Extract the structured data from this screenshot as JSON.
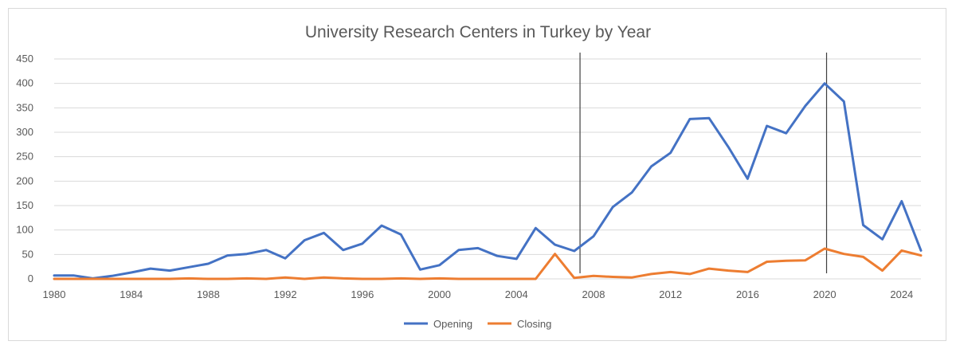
{
  "chart_data": {
    "type": "line",
    "title": "University Research Centers in Turkey by Year",
    "xlabel": "",
    "ylabel": "",
    "x": [
      1980,
      1981,
      1982,
      1983,
      1984,
      1985,
      1986,
      1987,
      1988,
      1989,
      1990,
      1991,
      1992,
      1993,
      1994,
      1995,
      1996,
      1997,
      1998,
      1999,
      2000,
      2001,
      2002,
      2003,
      2004,
      2005,
      2006,
      2007,
      2008,
      2009,
      2010,
      2011,
      2012,
      2013,
      2014,
      2015,
      2016,
      2017,
      2018,
      2019,
      2020,
      2021,
      2022,
      2023,
      2024,
      2025
    ],
    "x_tick_labels": [
      "1980",
      "1984",
      "1988",
      "1992",
      "1996",
      "2000",
      "2004",
      "2008",
      "2012",
      "2016",
      "2020",
      "2024"
    ],
    "y_tick_labels": [
      "0",
      "50",
      "100",
      "150",
      "200",
      "250",
      "300",
      "350",
      "400",
      "450"
    ],
    "xlim": [
      1980,
      2025
    ],
    "ylim": [
      0,
      450
    ],
    "grid": true,
    "legend_position": "bottom",
    "vertical_markers": [
      2007.3,
      2020.1
    ],
    "series": [
      {
        "name": "Opening",
        "color": "#4472c4",
        "values": [
          7,
          7,
          1,
          6,
          13,
          21,
          17,
          24,
          31,
          48,
          51,
          59,
          42,
          79,
          94,
          59,
          72,
          109,
          91,
          19,
          28,
          59,
          63,
          47,
          41,
          104,
          70,
          57,
          87,
          147,
          177,
          230,
          258,
          327,
          329,
          270,
          205,
          313,
          298,
          354,
          400,
          363,
          110,
          81,
          159,
          58
        ]
      },
      {
        "name": "Closing",
        "color": "#ed7d31",
        "values": [
          0,
          0,
          0,
          0,
          0,
          0,
          0,
          1,
          0,
          0,
          1,
          0,
          3,
          0,
          3,
          1,
          0,
          0,
          1,
          0,
          1,
          0,
          0,
          0,
          0,
          0,
          51,
          2,
          6,
          4,
          3,
          10,
          14,
          10,
          21,
          17,
          14,
          35,
          37,
          38,
          62,
          51,
          45,
          17,
          58,
          48
        ]
      }
    ]
  }
}
